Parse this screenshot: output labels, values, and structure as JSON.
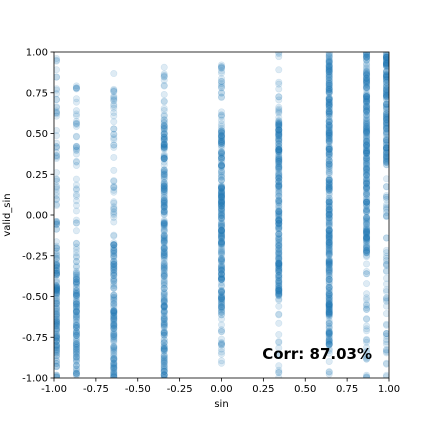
{
  "chart_data": {
    "type": "scatter",
    "xlabel": "sin",
    "ylabel": "valid_sin",
    "xlim": [
      -1.0,
      1.0
    ],
    "ylim": [
      -1.0,
      1.0
    ],
    "x_ticks": [
      "-1.00",
      "-0.75",
      "-0.50",
      "-0.25",
      "0.00",
      "0.25",
      "0.50",
      "0.75",
      "1.00"
    ],
    "y_ticks": [
      "-1.00",
      "-0.75",
      "-0.50",
      "-0.25",
      "0.00",
      "0.25",
      "0.50",
      "0.75",
      "1.00"
    ],
    "grid": false,
    "annotation": "Corr: 87.03%",
    "point_color": "#1f77b4",
    "point_alpha": 0.15,
    "columns": [
      {
        "x": -0.985,
        "dense": [
          -1.0,
          -0.2
        ],
        "sparse": [
          -0.2,
          0.98
        ]
      },
      {
        "x": -0.866,
        "dense": [
          -1.0,
          -0.35
        ],
        "sparse": [
          -0.35,
          0.8
        ]
      },
      {
        "x": -0.643,
        "dense": [
          -1.0,
          -0.15
        ],
        "sparse": [
          -0.15,
          0.87
        ]
      },
      {
        "x": -0.342,
        "dense": [
          -1.0,
          0.6
        ],
        "sparse": [
          0.6,
          0.93
        ]
      },
      {
        "x": 0.0,
        "dense": [
          -0.6,
          0.55
        ],
        "sparse": [
          -0.95,
          0.98
        ]
      },
      {
        "x": 0.342,
        "dense": [
          -0.5,
          0.58
        ],
        "sparse": [
          -1.0,
          1.0
        ]
      },
      {
        "x": 0.643,
        "dense": [
          -0.8,
          1.0
        ],
        "sparse": [
          -1.0,
          1.0
        ]
      },
      {
        "x": 0.866,
        "dense": [
          -0.25,
          1.0
        ],
        "sparse": [
          -1.0,
          1.0
        ]
      },
      {
        "x": 0.985,
        "dense": [
          0.3,
          1.0
        ],
        "sparse": [
          -1.0,
          1.0
        ]
      }
    ]
  }
}
